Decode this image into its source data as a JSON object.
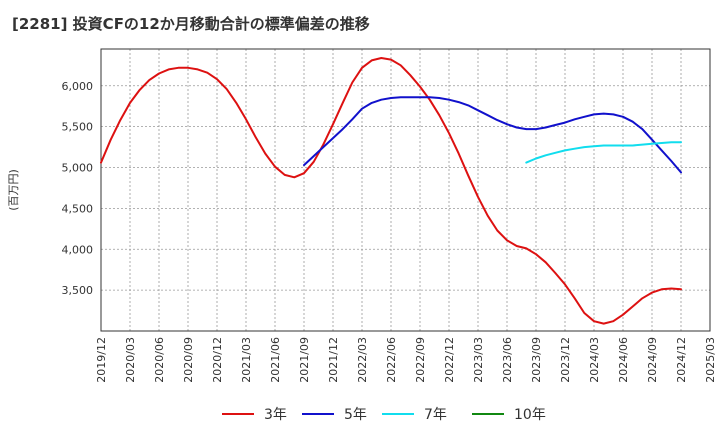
{
  "title": "[2281]  投資CFの12か月移動合計の標準偏差の推移",
  "colors": {
    "series_3y": "#dd1111",
    "series_5y": "#1111cc",
    "series_7y": "#11ddee",
    "series_10y": "#118811",
    "grid": "#999999",
    "axis": "#333333"
  },
  "chart_data": {
    "type": "line",
    "title": "[2281]  投資CFの12か月移動合計の標準偏差の推移",
    "ylabel": "(百万円)",
    "xlabel": "",
    "ylim": [
      3000,
      6450
    ],
    "yticks": [
      3500,
      4000,
      4500,
      5000,
      5500,
      6000
    ],
    "ytick_labels": [
      "3,500",
      "4,000",
      "4,500",
      "5,000",
      "5,500",
      "6,000"
    ],
    "xlim": [
      "2019-12",
      "2025-03"
    ],
    "xtick_labels": [
      "2019/12",
      "2020/03",
      "2020/06",
      "2020/09",
      "2020/12",
      "2021/03",
      "2021/06",
      "2021/09",
      "2021/12",
      "2022/03",
      "2022/06",
      "2022/09",
      "2022/12",
      "2023/03",
      "2023/06",
      "2023/09",
      "2023/12",
      "2024/03",
      "2024/06",
      "2024/09",
      "2024/12",
      "2025/03"
    ],
    "grid": true,
    "legend_position": "bottom-center",
    "series": [
      {
        "name": "3年",
        "x": [
          "2019-12",
          "2020-01",
          "2020-02",
          "2020-03",
          "2020-04",
          "2020-05",
          "2020-06",
          "2020-07",
          "2020-08",
          "2020-09",
          "2020-10",
          "2020-11",
          "2020-12",
          "2021-01",
          "2021-02",
          "2021-03",
          "2021-04",
          "2021-05",
          "2021-06",
          "2021-07",
          "2021-08",
          "2021-09",
          "2021-10",
          "2021-11",
          "2021-12",
          "2022-01",
          "2022-02",
          "2022-03",
          "2022-04",
          "2022-05",
          "2022-06",
          "2022-07",
          "2022-08",
          "2022-09",
          "2022-10",
          "2022-11",
          "2022-12",
          "2023-01",
          "2023-02",
          "2023-03",
          "2023-04",
          "2023-05",
          "2023-06",
          "2023-07",
          "2023-08",
          "2023-09",
          "2023-10",
          "2023-11",
          "2023-12",
          "2024-01",
          "2024-02",
          "2024-03",
          "2024-04",
          "2024-05",
          "2024-06",
          "2024-07",
          "2024-08",
          "2024-09",
          "2024-10",
          "2024-11",
          "2024-12"
        ],
        "values": [
          5060,
          5340,
          5580,
          5790,
          5950,
          6070,
          6150,
          6200,
          6220,
          6220,
          6200,
          6160,
          6080,
          5960,
          5790,
          5590,
          5370,
          5170,
          5010,
          4910,
          4880,
          4930,
          5070,
          5280,
          5530,
          5790,
          6040,
          6220,
          6310,
          6340,
          6320,
          6250,
          6130,
          5990,
          5830,
          5640,
          5420,
          5170,
          4900,
          4640,
          4410,
          4230,
          4110,
          4040,
          4010,
          3940,
          3840,
          3710,
          3570,
          3400,
          3220,
          3120,
          3090,
          3120,
          3200,
          3300,
          3400,
          3470,
          3510,
          3520,
          3510
        ]
      },
      {
        "name": "5年",
        "x": [
          "2021-09",
          "2021-10",
          "2021-11",
          "2021-12",
          "2022-01",
          "2022-02",
          "2022-03",
          "2022-04",
          "2022-05",
          "2022-06",
          "2022-07",
          "2022-08",
          "2022-09",
          "2022-10",
          "2022-11",
          "2022-12",
          "2023-01",
          "2023-02",
          "2023-03",
          "2023-04",
          "2023-05",
          "2023-06",
          "2023-07",
          "2023-08",
          "2023-09",
          "2023-10",
          "2023-11",
          "2023-12",
          "2024-01",
          "2024-02",
          "2024-03",
          "2024-04",
          "2024-05",
          "2024-06",
          "2024-07",
          "2024-08",
          "2024-09",
          "2024-10",
          "2024-11",
          "2024-12"
        ],
        "values": [
          5030,
          5140,
          5250,
          5360,
          5470,
          5590,
          5720,
          5790,
          5830,
          5850,
          5860,
          5860,
          5860,
          5860,
          5850,
          5830,
          5800,
          5760,
          5700,
          5640,
          5580,
          5530,
          5490,
          5470,
          5470,
          5490,
          5520,
          5550,
          5590,
          5620,
          5650,
          5660,
          5650,
          5620,
          5560,
          5470,
          5340,
          5210,
          5080,
          4940
        ]
      },
      {
        "name": "7年",
        "x": [
          "2023-08",
          "2023-09",
          "2023-10",
          "2023-11",
          "2023-12",
          "2024-01",
          "2024-02",
          "2024-03",
          "2024-04",
          "2024-05",
          "2024-06",
          "2024-07",
          "2024-08",
          "2024-09",
          "2024-10",
          "2024-11",
          "2024-12"
        ],
        "values": [
          5060,
          5110,
          5150,
          5180,
          5210,
          5230,
          5250,
          5260,
          5270,
          5270,
          5270,
          5270,
          5280,
          5290,
          5300,
          5310,
          5310
        ]
      },
      {
        "name": "10年",
        "x": [],
        "values": []
      }
    ]
  }
}
